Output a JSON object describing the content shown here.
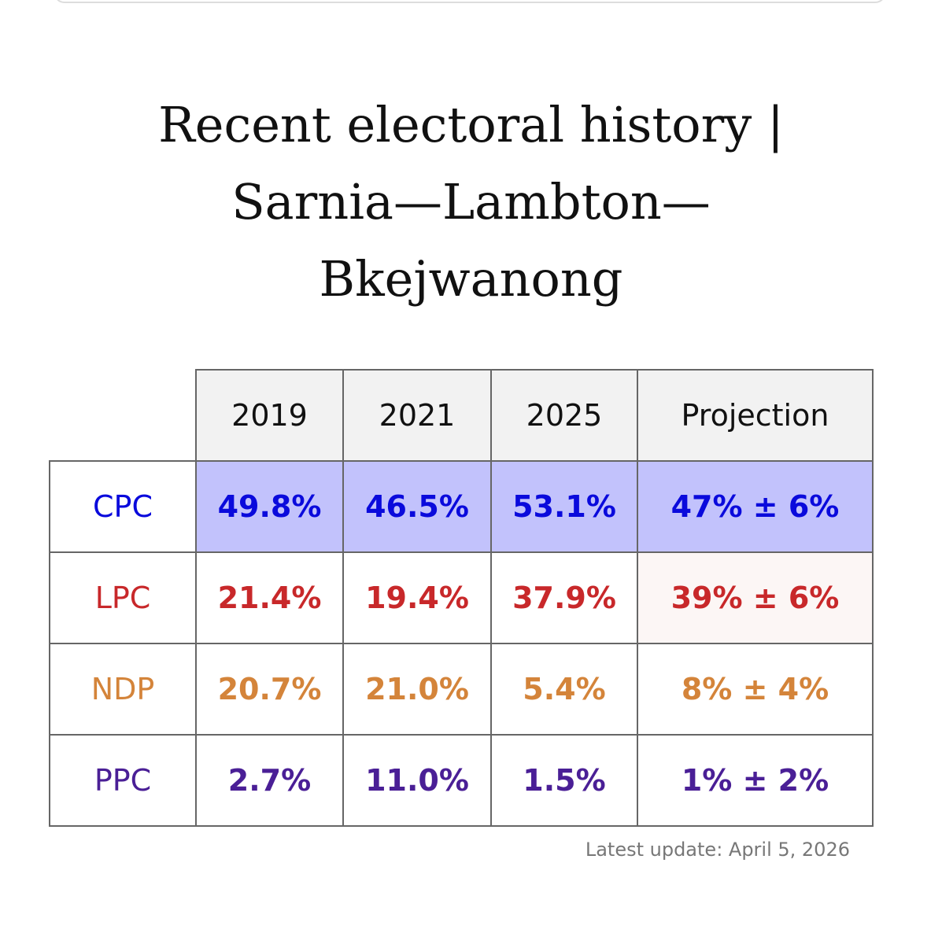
{
  "title_lines": [
    "Recent electoral history |",
    "Sarnia—Lambton—",
    "Bkejwanong"
  ],
  "table": {
    "header": [
      "2019",
      "2021",
      "2025",
      "Projection"
    ],
    "header_fill": "#f2f2f2",
    "rows": [
      {
        "party": "CPC",
        "color": "#0a0adc",
        "fill": "#c2c2fc",
        "cells": [
          "49.8%",
          "46.5%",
          "53.1%",
          "47% ± 6%"
        ]
      },
      {
        "party": "LPC",
        "color": "#c8282a",
        "projection_fill": "#fcf6f5",
        "cells": [
          "21.4%",
          "19.4%",
          "37.9%",
          "39% ± 6%"
        ]
      },
      {
        "party": "NDP",
        "color": "#d4843a",
        "cells": [
          "20.7%",
          "21.0%",
          "5.4%",
          "8% ± 4%"
        ]
      },
      {
        "party": "PPC",
        "color": "#4a1f96",
        "cells": [
          "2.7%",
          "11.0%",
          "1.5%",
          "1% ± 2%"
        ]
      }
    ]
  },
  "footer": "Latest update: April 5, 2026"
}
